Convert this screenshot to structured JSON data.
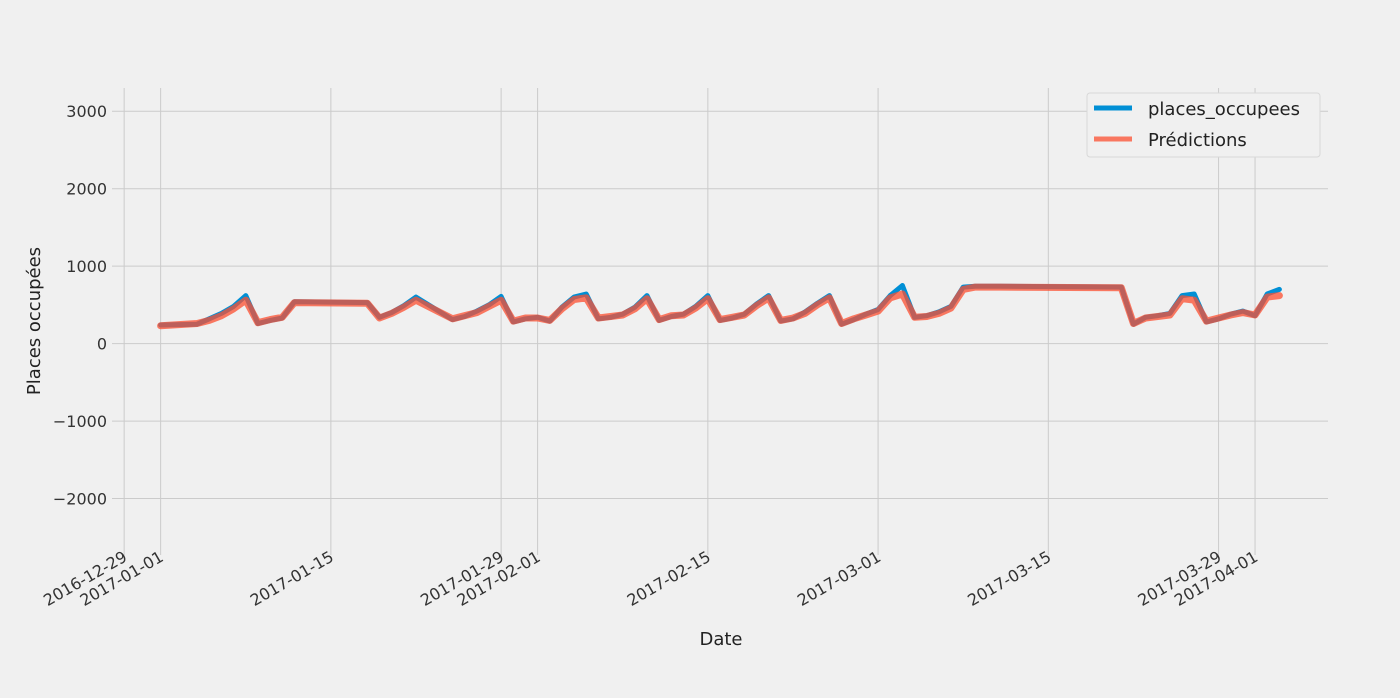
{
  "chart_data": {
    "type": "line",
    "xlabel": "Date",
    "ylabel": "Places occupées",
    "ylim": [
      -2600,
      3300
    ],
    "xlim": [
      "2016-12-28",
      "2017-04-07"
    ],
    "y_ticks": [
      3000,
      2000,
      1000,
      0,
      -1000,
      -2000
    ],
    "y_tick_labels": [
      "3000",
      "2000",
      "1000",
      "0",
      "−1000",
      "−2000"
    ],
    "x_ticks": [
      "2016-12-29",
      "2017-01-01",
      "2017-01-15",
      "2017-01-29",
      "2017-02-01",
      "2017-02-15",
      "2017-03-01",
      "2017-03-15",
      "2017-03-29",
      "2017-04-01"
    ],
    "grid": true,
    "legend_position": "top-right",
    "legend": [
      "places_occupees",
      "Prédictions"
    ],
    "colors": {
      "places_occupees": "#008fd5",
      "Prédictions": "#fc4f30",
      "background": "#f0f0f0",
      "grid": "#cbcbcb"
    },
    "series": [
      {
        "name": "places_occupees",
        "x": [
          "2017-01-01",
          "2017-01-04",
          "2017-01-05",
          "2017-01-06",
          "2017-01-07",
          "2017-01-08",
          "2017-01-09",
          "2017-01-10",
          "2017-01-11",
          "2017-01-12",
          "2017-01-18",
          "2017-01-19",
          "2017-01-20",
          "2017-01-21",
          "2017-01-22",
          "2017-01-25",
          "2017-01-26",
          "2017-01-27",
          "2017-01-28",
          "2017-01-29",
          "2017-01-30",
          "2017-01-31",
          "2017-02-01",
          "2017-02-02",
          "2017-02-03",
          "2017-02-04",
          "2017-02-05",
          "2017-02-06",
          "2017-02-07",
          "2017-02-08",
          "2017-02-09",
          "2017-02-10",
          "2017-02-11",
          "2017-02-12",
          "2017-02-13",
          "2017-02-14",
          "2017-02-15",
          "2017-02-16",
          "2017-02-17",
          "2017-02-18",
          "2017-02-19",
          "2017-02-20",
          "2017-02-21",
          "2017-02-22",
          "2017-02-23",
          "2017-02-24",
          "2017-02-25",
          "2017-02-26",
          "2017-02-27",
          "2017-02-28",
          "2017-03-01",
          "2017-03-02",
          "2017-03-03",
          "2017-03-04",
          "2017-03-05",
          "2017-03-06",
          "2017-03-07",
          "2017-03-08",
          "2017-03-09",
          "2017-03-10",
          "2017-03-11",
          "2017-03-21",
          "2017-03-22",
          "2017-03-23",
          "2017-03-24",
          "2017-03-25",
          "2017-03-26",
          "2017-03-27",
          "2017-03-28",
          "2017-03-29",
          "2017-03-30",
          "2017-03-31",
          "2017-04-01",
          "2017-04-02",
          "2017-04-03"
        ],
        "values": [
          240,
          250,
          320,
          390,
          480,
          620,
          260,
          300,
          330,
          540,
          530,
          340,
          400,
          490,
          600,
          310,
          350,
          420,
          500,
          610,
          280,
          320,
          340,
          290,
          470,
          600,
          640,
          320,
          340,
          380,
          470,
          620,
          300,
          350,
          380,
          480,
          620,
          300,
          330,
          380,
          510,
          620,
          290,
          320,
          410,
          520,
          620,
          250,
          310,
          380,
          440,
          620,
          750,
          340,
          360,
          410,
          480,
          730,
          740,
          740,
          740,
          730,
          250,
          340,
          360,
          390,
          620,
          640,
          280,
          320,
          380,
          420,
          360,
          640,
          700
        ]
      },
      {
        "name": "Prédictions",
        "x": [
          "2017-01-01",
          "2017-01-04",
          "2017-01-05",
          "2017-01-06",
          "2017-01-07",
          "2017-01-08",
          "2017-01-09",
          "2017-01-10",
          "2017-01-11",
          "2017-01-12",
          "2017-01-18",
          "2017-01-19",
          "2017-01-20",
          "2017-01-21",
          "2017-01-22",
          "2017-01-25",
          "2017-01-26",
          "2017-01-27",
          "2017-01-28",
          "2017-01-29",
          "2017-01-30",
          "2017-01-31",
          "2017-02-01",
          "2017-02-02",
          "2017-02-03",
          "2017-02-04",
          "2017-02-05",
          "2017-02-06",
          "2017-02-07",
          "2017-02-08",
          "2017-02-09",
          "2017-02-10",
          "2017-02-11",
          "2017-02-12",
          "2017-02-13",
          "2017-02-14",
          "2017-02-15",
          "2017-02-16",
          "2017-02-17",
          "2017-02-18",
          "2017-02-19",
          "2017-02-20",
          "2017-02-21",
          "2017-02-22",
          "2017-02-23",
          "2017-02-24",
          "2017-02-25",
          "2017-02-26",
          "2017-02-27",
          "2017-02-28",
          "2017-03-01",
          "2017-03-02",
          "2017-03-03",
          "2017-03-04",
          "2017-03-05",
          "2017-03-06",
          "2017-03-07",
          "2017-03-08",
          "2017-03-09",
          "2017-03-10",
          "2017-03-11",
          "2017-03-21",
          "2017-03-22",
          "2017-03-23",
          "2017-03-24",
          "2017-03-25",
          "2017-03-26",
          "2017-03-27",
          "2017-03-28",
          "2017-03-29",
          "2017-03-30",
          "2017-03-31",
          "2017-04-01",
          "2017-04-02",
          "2017-04-03"
        ],
        "values": [
          230,
          260,
          300,
          360,
          450,
          560,
          270,
          310,
          340,
          530,
          520,
          330,
          390,
          470,
          560,
          320,
          360,
          400,
          480,
          560,
          290,
          330,
          330,
          300,
          450,
          570,
          590,
          330,
          350,
          370,
          450,
          580,
          310,
          360,
          370,
          460,
          580,
          310,
          340,
          370,
          490,
          590,
          300,
          330,
          390,
          500,
          590,
          260,
          320,
          370,
          420,
          590,
          640,
          340,
          350,
          390,
          460,
          700,
          730,
          730,
          730,
          720,
          260,
          330,
          350,
          370,
          580,
          560,
          290,
          330,
          370,
          400,
          370,
          600,
          620
        ]
      }
    ]
  }
}
